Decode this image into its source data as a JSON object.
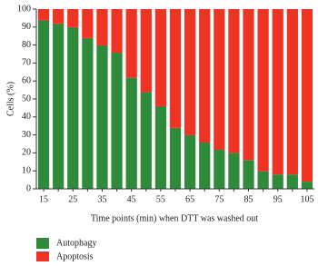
{
  "chart_data": {
    "type": "stacked-bar",
    "x_label": "Time points (min) when DTT was washed out",
    "y_label": "Cells (%)",
    "categories": [
      "15",
      null,
      "25",
      null,
      "35",
      null,
      "45",
      null,
      "55",
      null,
      "65",
      null,
      "75",
      null,
      "85",
      null,
      "95",
      null,
      "105"
    ],
    "series": [
      {
        "name": "Autophagy",
        "color": "#2e8b3c",
        "values": [
          94,
          92,
          90,
          84,
          80,
          76,
          62,
          54,
          46,
          34,
          30,
          26,
          22,
          20,
          16,
          10,
          8,
          8,
          4
        ]
      },
      {
        "name": "Apoptosis",
        "color": "#f03322",
        "values": [
          6,
          8,
          10,
          16,
          20,
          24,
          38,
          46,
          54,
          66,
          70,
          74,
          78,
          80,
          84,
          90,
          92,
          92,
          96
        ]
      }
    ],
    "ylim": [
      0,
      100
    ],
    "yticks": [
      0,
      10,
      20,
      30,
      40,
      50,
      60,
      70,
      80,
      90,
      100
    ]
  }
}
